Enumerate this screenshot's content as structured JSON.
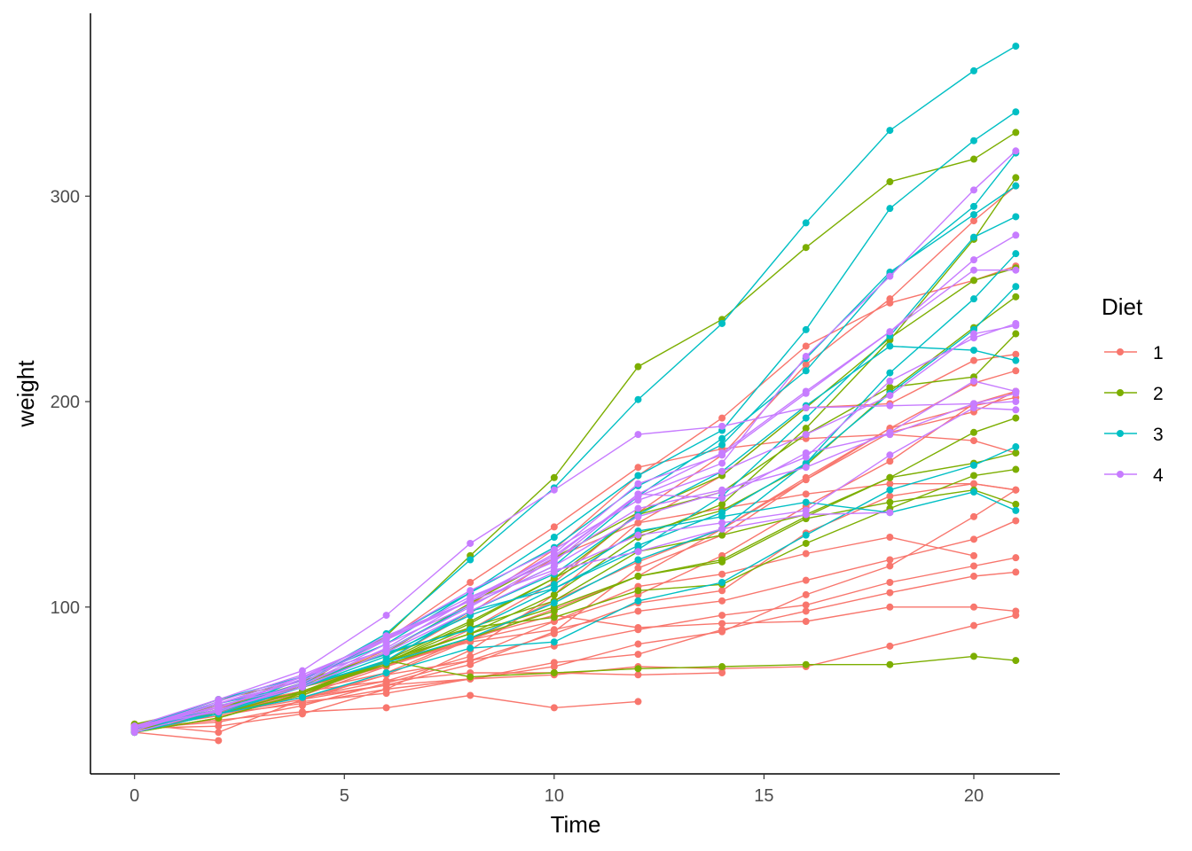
{
  "chart_data": {
    "type": "line",
    "xlabel": "Time",
    "ylabel": "weight",
    "xlim": [
      -1.05,
      22.05
    ],
    "ylim": [
      18.8,
      389
    ],
    "x_ticks": [
      0,
      5,
      10,
      15,
      20
    ],
    "y_ticks": [
      100,
      200,
      300
    ],
    "grid": false,
    "legend": {
      "title": "Diet",
      "placement": "right",
      "entries": [
        "1",
        "2",
        "3",
        "4"
      ]
    },
    "colors": {
      "1": "#F8766D",
      "2": "#7CAE00",
      "3": "#00BFC4",
      "4": "#C77CFF"
    },
    "times": [
      0,
      2,
      4,
      6,
      8,
      10,
      12,
      14,
      16,
      18,
      20,
      21
    ],
    "series": [
      {
        "chick": 1,
        "diet": "1",
        "weights": [
          42,
          51,
          59,
          64,
          76,
          93,
          106,
          125,
          149,
          171,
          199,
          205
        ]
      },
      {
        "chick": 2,
        "diet": "1",
        "weights": [
          40,
          49,
          58,
          72,
          84,
          103,
          122,
          138,
          162,
          187,
          209,
          215
        ]
      },
      {
        "chick": 3,
        "diet": "1",
        "weights": [
          43,
          39,
          55,
          67,
          84,
          99,
          115,
          138,
          163,
          187,
          198,
          202
        ]
      },
      {
        "chick": 4,
        "diet": "1",
        "weights": [
          42,
          49,
          56,
          67,
          74,
          87,
          102,
          108,
          136,
          154,
          160,
          157
        ]
      },
      {
        "chick": 5,
        "diet": "1",
        "weights": [
          41,
          42,
          48,
          60,
          79,
          106,
          141,
          164,
          197,
          199,
          220,
          223
        ]
      },
      {
        "chick": 6,
        "diet": "1",
        "weights": [
          41,
          49,
          59,
          74,
          97,
          124,
          141,
          148,
          155,
          160,
          160,
          157
        ]
      },
      {
        "chick": 7,
        "diet": "1",
        "weights": [
          41,
          49,
          57,
          71,
          89,
          112,
          146,
          174,
          218,
          250,
          288,
          305
        ]
      },
      {
        "chick": 8,
        "diet": "1",
        "weights": [
          42,
          50,
          61,
          71,
          84,
          93,
          110,
          116,
          126,
          134,
          125
        ]
      },
      {
        "chick": 9,
        "diet": "1",
        "weights": [
          42,
          51,
          59,
          68,
          85,
          96,
          90,
          92,
          93,
          100,
          100,
          98
        ]
      },
      {
        "chick": 10,
        "diet": "1",
        "weights": [
          41,
          44,
          52,
          63,
          74,
          81,
          89,
          96,
          101,
          112,
          120,
          124
        ]
      },
      {
        "chick": 11,
        "diet": "1",
        "weights": [
          43,
          51,
          63,
          84,
          112,
          139,
          168,
          177,
          182,
          184,
          181,
          175
        ]
      },
      {
        "chick": 12,
        "diet": "1",
        "weights": [
          41,
          49,
          56,
          62,
          72,
          88,
          119,
          135,
          162,
          185,
          195,
          205
        ]
      },
      {
        "chick": 13,
        "diet": "1",
        "weights": [
          41,
          48,
          53,
          60,
          65,
          67,
          71,
          70,
          71,
          81,
          91,
          96
        ]
      },
      {
        "chick": 14,
        "diet": "1",
        "weights": [
          41,
          49,
          62,
          79,
          101,
          128,
          164,
          192,
          227,
          248,
          259,
          266
        ]
      },
      {
        "chick": 15,
        "diet": "1",
        "weights": [
          41,
          49,
          56,
          64,
          68,
          68,
          67,
          68
        ]
      },
      {
        "chick": 16,
        "diet": "1",
        "weights": [
          41,
          45,
          49,
          51,
          57,
          51,
          54
        ]
      },
      {
        "chick": 17,
        "diet": "1",
        "weights": [
          42,
          51,
          61,
          72,
          83,
          89,
          98,
          103,
          113,
          123,
          133,
          142
        ]
      },
      {
        "chick": 18,
        "diet": "1",
        "weights": [
          39,
          35
        ]
      },
      {
        "chick": 19,
        "diet": "1",
        "weights": [
          43,
          48,
          55,
          62,
          65,
          71,
          82,
          88,
          106,
          120,
          144,
          157
        ]
      },
      {
        "chick": 20,
        "diet": "1",
        "weights": [
          41,
          47,
          54,
          58,
          65,
          73,
          77,
          89,
          98,
          107,
          115,
          117
        ]
      },
      {
        "chick": 21,
        "diet": "2",
        "weights": [
          40,
          50,
          62,
          86,
          125,
          163,
          217,
          240,
          275,
          307,
          318,
          331
        ]
      },
      {
        "chick": 22,
        "diet": "2",
        "weights": [
          41,
          55,
          64,
          77,
          90,
          95,
          108,
          111,
          131,
          148,
          164,
          167
        ]
      },
      {
        "chick": 23,
        "diet": "2",
        "weights": [
          43,
          52,
          61,
          73,
          90,
          103,
          127,
          135,
          145,
          163,
          170,
          175
        ]
      },
      {
        "chick": 24,
        "diet": "2",
        "weights": [
          42,
          52,
          58,
          74,
          66,
          68,
          70,
          71,
          72,
          72,
          76,
          74
        ]
      },
      {
        "chick": 25,
        "diet": "2",
        "weights": [
          40,
          49,
          62,
          78,
          102,
          124,
          146,
          164,
          197,
          231,
          259,
          265
        ]
      },
      {
        "chick": 26,
        "diet": "2",
        "weights": [
          42,
          48,
          57,
          74,
          93,
          114,
          136,
          147,
          169,
          205,
          236,
          251
        ]
      },
      {
        "chick": 27,
        "diet": "2",
        "weights": [
          39,
          46,
          58,
          73,
          87,
          100,
          115,
          123,
          144,
          163,
          185,
          192
        ]
      },
      {
        "chick": 28,
        "diet": "2",
        "weights": [
          39,
          46,
          58,
          73,
          92,
          114,
          145,
          156,
          184,
          207,
          212,
          233
        ]
      },
      {
        "chick": 29,
        "diet": "2",
        "weights": [
          39,
          48,
          59,
          74,
          87,
          106,
          134,
          150,
          187,
          230,
          279,
          309
        ]
      },
      {
        "chick": 30,
        "diet": "2",
        "weights": [
          42,
          48,
          59,
          72,
          85,
          98,
          115,
          122,
          143,
          151,
          157,
          150
        ]
      },
      {
        "chick": 31,
        "diet": "3",
        "weights": [
          42,
          53,
          62,
          73,
          85,
          102,
          123,
          138,
          170,
          204,
          235,
          256
        ]
      },
      {
        "chick": 32,
        "diet": "3",
        "weights": [
          41,
          49,
          65,
          82,
          107,
          129,
          159,
          179,
          221,
          263,
          291,
          305
        ]
      },
      {
        "chick": 33,
        "diet": "3",
        "weights": [
          39,
          50,
          63,
          77,
          96,
          111,
          137,
          144,
          151,
          146,
          156,
          147
        ]
      },
      {
        "chick": 34,
        "diet": "3",
        "weights": [
          41,
          49,
          63,
          85,
          107,
          134,
          164,
          186,
          235,
          294,
          327,
          341
        ]
      },
      {
        "chick": 35,
        "diet": "3",
        "weights": [
          41,
          53,
          64,
          87,
          123,
          158,
          201,
          238,
          287,
          332,
          361,
          373
        ]
      },
      {
        "chick": 36,
        "diet": "3",
        "weights": [
          39,
          48,
          61,
          76,
          98,
          116,
          145,
          166,
          198,
          227,
          225,
          220
        ]
      },
      {
        "chick": 37,
        "diet": "3",
        "weights": [
          41,
          48,
          56,
          68,
          80,
          83,
          103,
          112,
          135,
          157,
          169,
          178
        ]
      },
      {
        "chick": 38,
        "diet": "3",
        "weights": [
          41,
          49,
          61,
          74,
          98,
          109,
          128,
          154,
          192,
          232,
          280,
          290
        ]
      },
      {
        "chick": 39,
        "diet": "3",
        "weights": [
          42,
          50,
          61,
          78,
          89,
          109,
          130,
          146,
          170,
          214,
          250,
          272
        ]
      },
      {
        "chick": 40,
        "diet": "3",
        "weights": [
          41,
          55,
          66,
          79,
          101,
          120,
          154,
          182,
          215,
          262,
          295,
          321
        ]
      },
      {
        "chick": 41,
        "diet": "4",
        "weights": [
          42,
          51,
          66,
          85,
          103,
          124,
          155,
          153,
          175,
          184,
          199,
          204
        ]
      },
      {
        "chick": 42,
        "diet": "4",
        "weights": [
          42,
          49,
          63,
          84,
          103,
          126,
          160,
          174,
          204,
          234,
          269,
          281
        ]
      },
      {
        "chick": 43,
        "diet": "4",
        "weights": [
          42,
          55,
          69,
          96,
          131,
          157,
          184,
          188,
          197,
          198,
          199,
          200
        ]
      },
      {
        "chick": 44,
        "diet": "4",
        "weights": [
          42,
          51,
          65,
          86,
          103,
          118,
          127,
          138,
          145,
          146
        ]
      },
      {
        "chick": 45,
        "diet": "4",
        "weights": [
          41,
          50,
          61,
          78,
          98,
          117,
          135,
          141,
          147,
          174,
          197,
          196
        ]
      },
      {
        "chick": 46,
        "diet": "4",
        "weights": [
          40,
          52,
          62,
          82,
          101,
          120,
          144,
          156,
          173,
          210,
          231,
          238
        ]
      },
      {
        "chick": 47,
        "diet": "4",
        "weights": [
          41,
          53,
          66,
          79,
          100,
          123,
          148,
          157,
          168,
          185,
          210,
          205
        ]
      },
      {
        "chick": 48,
        "diet": "4",
        "weights": [
          39,
          50,
          62,
          80,
          104,
          125,
          154,
          170,
          222,
          261,
          303,
          322
        ]
      },
      {
        "chick": 49,
        "diet": "4",
        "weights": [
          40,
          53,
          64,
          85,
          108,
          128,
          152,
          166,
          184,
          203,
          233,
          237
        ]
      },
      {
        "chick": 50,
        "diet": "4",
        "weights": [
          41,
          54,
          67,
          84,
          105,
          122,
          155,
          175,
          205,
          234,
          264,
          264
        ]
      }
    ]
  }
}
